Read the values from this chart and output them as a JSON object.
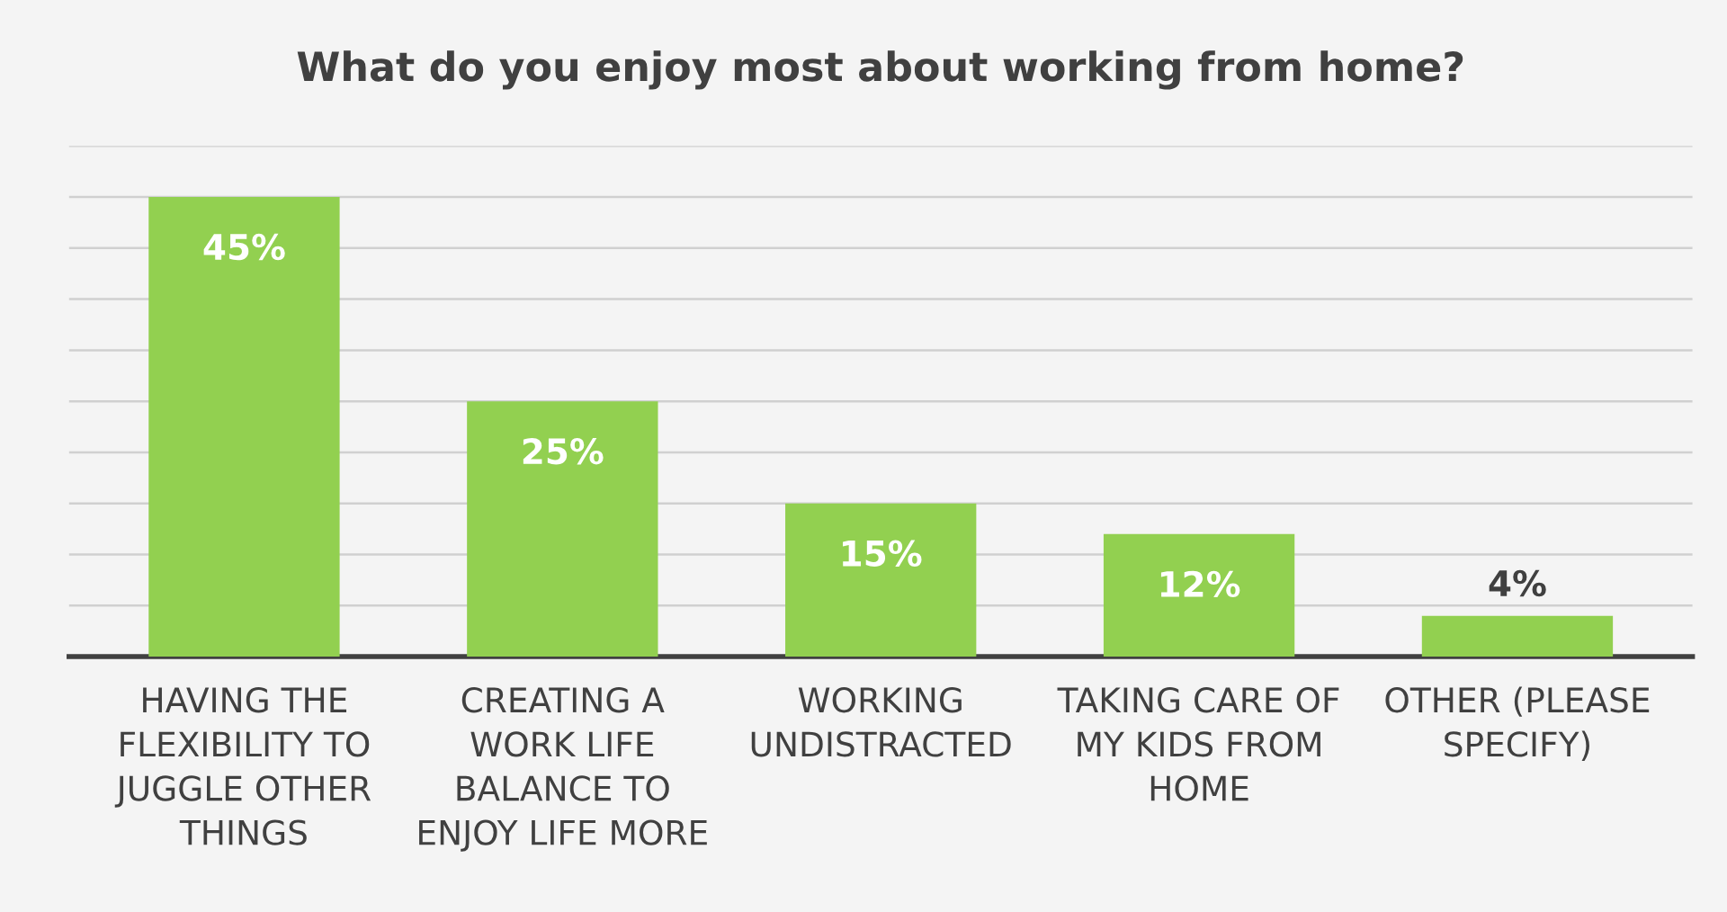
{
  "chart_data": {
    "type": "bar",
    "title": "What do you enjoy most about working from home?",
    "categories": [
      "HAVING THE\nFLEXIBILITY TO\nJUGGLE OTHER\nTHINGS",
      "CREATING A\nWORK LIFE\nBALANCE TO\nENJOY LIFE MORE",
      "WORKING\nUNDISTRACTED",
      "TAKING CARE OF\nMY KIDS FROM\nHOME",
      "OTHER (PLEASE\nSPECIFY)"
    ],
    "values": [
      45,
      25,
      15,
      12,
      4
    ],
    "value_labels": [
      "45%",
      "25%",
      "15%",
      "12%",
      "4%"
    ],
    "color": "#92d050",
    "ylim": [
      0,
      50
    ],
    "yticks": [
      {
        "value": 0,
        "label": null
      },
      {
        "value": 5,
        "label": null
      },
      {
        "value": 10,
        "label": null
      },
      {
        "value": 15,
        "label": null
      },
      {
        "value": 20,
        "label": null
      },
      {
        "value": 25,
        "label": null
      },
      {
        "value": 30,
        "label": null
      },
      {
        "value": 35,
        "label": null
      },
      {
        "value": 40,
        "label": null
      },
      {
        "value": 45,
        "label": null
      },
      {
        "value": 50,
        "label": null
      }
    ],
    "grid": "y",
    "tick_labels": "x",
    "legend": false
  }
}
